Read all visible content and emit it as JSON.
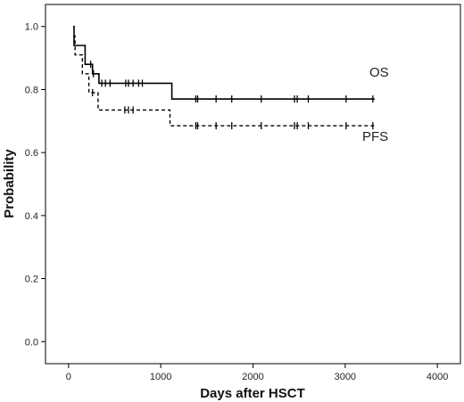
{
  "chart_data": {
    "type": "line",
    "xlabel": "Days after HSCT",
    "ylabel": "Probability",
    "xlim": [
      -250,
      4250
    ],
    "ylim": [
      -0.07,
      1.07
    ],
    "x_ticks": [
      0,
      1000,
      2000,
      3000,
      4000
    ],
    "y_ticks": [
      0.0,
      0.2,
      0.4,
      0.6,
      0.8,
      1.0
    ],
    "x_tick_labels": [
      "0",
      "1000",
      "2000",
      "3000",
      "4000"
    ],
    "y_tick_labels": [
      "0.0",
      "0.2",
      "0.4",
      "0.6",
      "0.8",
      "1.0"
    ],
    "grid": false,
    "step": true,
    "series": [
      {
        "name": "OS",
        "style": "solid",
        "color": "#000000",
        "steps": [
          [
            50,
            1.0
          ],
          [
            60,
            0.94
          ],
          [
            180,
            0.88
          ],
          [
            260,
            0.85
          ],
          [
            330,
            0.82
          ],
          [
            1120,
            0.77
          ],
          [
            3320,
            0.77
          ]
        ],
        "censored": [
          240,
          270,
          360,
          400,
          450,
          620,
          650,
          700,
          760,
          800,
          1380,
          1400,
          1600,
          1770,
          2090,
          2450,
          2480,
          2600,
          3010,
          3300
        ]
      },
      {
        "name": "PFS",
        "style": "dashed",
        "color": "#000000",
        "steps": [
          [
            50,
            0.97
          ],
          [
            70,
            0.91
          ],
          [
            150,
            0.85
          ],
          [
            220,
            0.79
          ],
          [
            320,
            0.735
          ],
          [
            1100,
            0.685
          ],
          [
            3320,
            0.685
          ]
        ],
        "censored": [
          260,
          610,
          650,
          700,
          1380,
          1400,
          1600,
          1770,
          2090,
          2450,
          2480,
          2600,
          3010,
          3300
        ]
      }
    ]
  }
}
